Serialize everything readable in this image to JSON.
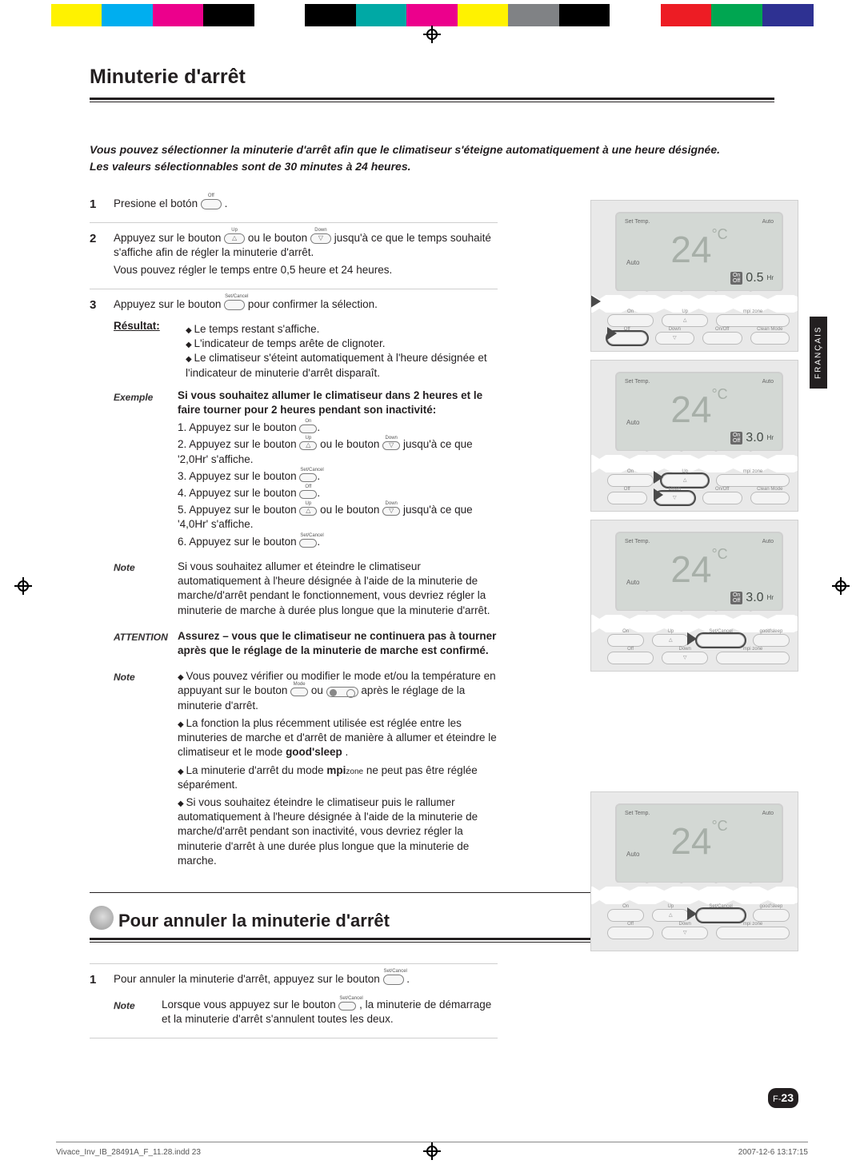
{
  "colorbar": [
    "#ffffff",
    "#fff200",
    "#00aeef",
    "#ec008c",
    "#000000",
    "#ffffff",
    "#000000",
    "#00a9a5",
    "#ec008c",
    "#fff200",
    "#808285",
    "#000000",
    "#ffffff",
    "#ed1c24",
    "#00a651",
    "#2e3192",
    "#ffffff"
  ],
  "language_tab": "FRANÇAIS",
  "section1": {
    "title": "Minuterie d'arrêt",
    "intro_line1": "Vous pouvez sélectionner la minuterie d'arrêt afin que le climatiseur s'éteigne automatiquement à une heure désignée.",
    "intro_line2": "Les valeurs sélectionnables sont de 30 minutes à 24 heures.",
    "steps": {
      "s1": {
        "num": "1",
        "text_a": "Presione el botón ",
        "btn_label": "Off",
        "text_b": " ."
      },
      "s2": {
        "num": "2",
        "line1_a": "Appuyez sur le bouton ",
        "btn_up": "Up",
        "line1_b": " ou le bouton ",
        "btn_down": "Down",
        "line1_c": " jusqu'à ce que le temps souhaité s'affiche afin de régler la minuterie d'arrêt.",
        "line2": "Vous pouvez régler le temps entre 0,5 heure et 24 heures."
      },
      "s3": {
        "num": "3",
        "line1_a": "Appuyez sur le bouton ",
        "btn_sc": "Set/Cancel",
        "line1_b": " pour confirmer la sélection.",
        "result_label": "Résultat:",
        "results": [
          "Le temps restant s'affiche.",
          "L'indicateur de temps arête de clignoter.",
          "Le climatiseur s'éteint automatiquement à l'heure désignée et l'indicateur de minuterie d'arrêt disparaît."
        ],
        "example_tag": "Exemple",
        "example_intro": "Si vous souhaitez allumer le climatiseur dans 2 heures et le faire tourner pour 2 heures pendant son inactivité:",
        "example_steps": {
          "e1_a": "Appuyez sur le bouton ",
          "e1_btn": "On",
          "e1_b": ".",
          "e2_a": "Appuyez sur le bouton ",
          "e2_up": "Up",
          "e2_mid": " ou le bouton ",
          "e2_down": "Down",
          "e2_b": " jusqu'à ce que '2,0Hr' s'affiche.",
          "e3_a": "Appuyez sur le bouton ",
          "e3_btn": "Set/Cancel",
          "e3_b": ".",
          "e4_a": "Appuyez sur le bouton ",
          "e4_btn": "Off",
          "e4_b": ".",
          "e5_a": "Appuyez sur le bouton ",
          "e5_up": "Up",
          "e5_mid": " ou le bouton ",
          "e5_down": "Down",
          "e5_b": " jusqu'à ce que '4,0Hr' s'affiche.",
          "e6_a": "Appuyez sur le bouton ",
          "e6_btn": "Set/Cancel",
          "e6_b": "."
        },
        "note1_tag": "Note",
        "note1_text": "Si vous souhaitez allumer et éteindre le climatiseur automatiquement à l'heure désignée à l'aide de la minuterie de marche/d'arrêt pendant le fonctionnement, vous devriez régler la minuterie de marche à durée plus longue que la minuterie d'arrêt.",
        "attention_tag": "ATTENTION",
        "attention_text": "Assurez – vous que le climatiseur ne continuera pas à tourner après que le réglage de la minuterie de marche est confirmé.",
        "note2_tag": "Note",
        "note2_items": {
          "i1_a": "Vous pouvez vérifier ou modifier le mode et/ou la température en appuyant sur le bouton ",
          "i1_btn1": "Mode",
          "i1_mid": " ou ",
          "i1_b": " après le réglage de la minuterie d'arrêt.",
          "i2_a": "La fonction la plus récemment utilisée est réglée entre les minuteries de marche et d'arrêt de manière à allumer et éteindre le climatiseur et le mode ",
          "i2_gs": "good'sleep",
          "i2_b": ".",
          "i3_a": "La minuterie d'arrêt du mode ",
          "i3_mpi": "mpi",
          "i3_zone": "zone",
          "i3_b": " ne peut pas être réglée séparément.",
          "i4": "Si vous souhaitez éteindre le climatiseur puis le rallumer automatiquement à l'heure désignée à l'aide de la minuterie de marche/d'arrêt pendant son inactivité, vous devriez régler la minuterie d'arrêt à une durée plus longue que la minuterie de marche."
        }
      }
    }
  },
  "section2": {
    "title": "Pour annuler la minuterie d'arrêt",
    "step": {
      "num": "1",
      "text_a": "Pour annuler la minuterie d'arrêt, appuyez sur le bouton ",
      "btn": "Set/Cancel",
      "text_b": " ."
    },
    "note_tag": "Note",
    "note_a": "Lorsque vous appuyez sur le bouton ",
    "note_btn": "Set/Cancel",
    "note_b": " , la minuterie de démarrage et la minuterie d'arrêt s'annulent toutes les deux."
  },
  "remotes": {
    "screen": {
      "set_temp": "Set Temp.",
      "auto_top": "Auto",
      "temp": "24",
      "deg": "°C",
      "auto": "Auto"
    },
    "timer1": "0.5",
    "timer2": "3.0",
    "timer3": "3.0",
    "timer_hr": "Hr",
    "badge_on": "On",
    "badge_off": "Off",
    "btn_on": "On",
    "btn_up": "Up",
    "btn_off": "Off",
    "btn_down": "Down",
    "btn_sc": "Set/Cancel",
    "btn_gs": "good'sleep",
    "btn_onoff": "On/Off",
    "btn_clean": "Clean Mode",
    "btn_mpi": "mpi zone"
  },
  "page_prefix": "F-",
  "page_number": "23",
  "footer": {
    "left": "Vivace_Inv_IB_28491A_F_11.28.indd   23",
    "right": "2007-12-6   13:17:15"
  }
}
